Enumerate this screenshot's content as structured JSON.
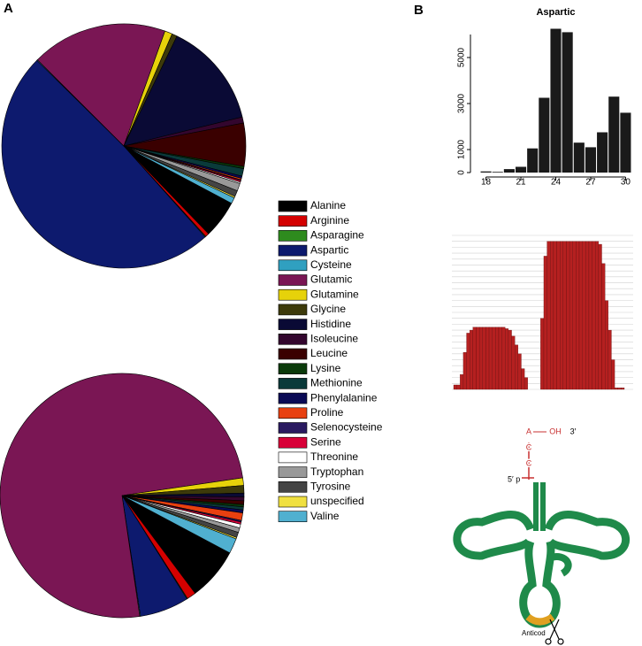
{
  "panels": [
    "A",
    "B"
  ],
  "chart_data": [
    {
      "type": "pie",
      "categories": [
        "Alanine",
        "Arginine",
        "Asparagine",
        "Aspartic",
        "Cysteine",
        "Glutamic",
        "Glutamine",
        "Glycine",
        "Histidine",
        "Isoleucine",
        "Leucine",
        "Lysine",
        "Methionine",
        "Phenylalanine",
        "Proline",
        "Selenocysteine",
        "Serine",
        "Threonine",
        "Tryptophan",
        "Tyrosine",
        "unspecified",
        "Valine"
      ],
      "colors": [
        "#000000",
        "#d40000",
        "#2e8b1e",
        "#0d1a6e",
        "#30a0c0",
        "#7a1654",
        "#e6d20a",
        "#3d3a0a",
        "#0a0a35",
        "#33062e",
        "#3a0000",
        "#0a3a0a",
        "#0a3a3a",
        "#0a0a55",
        "#e84010",
        "#2a1a60",
        "#d80038",
        "#ffffff",
        "#999999",
        "#444444",
        "#f0e040",
        "#50b0d0"
      ],
      "values": [
        5,
        0.5,
        0.1,
        49,
        0.1,
        18,
        1,
        0.7,
        14,
        0.8,
        5.7,
        0.3,
        1,
        0.3,
        0.2,
        0.1,
        0.2,
        0.2,
        1,
        0.8,
        0.2,
        0.8
      ]
    },
    {
      "type": "pie",
      "values": [
        7,
        1.2,
        0.1,
        6.5,
        0.1,
        75,
        1,
        1,
        0.5,
        0.5,
        0.5,
        0.3,
        0.4,
        0.4,
        1,
        0.2,
        0.3,
        0.5,
        0.6,
        0.7,
        0.2,
        2
      ]
    },
    {
      "type": "histogram",
      "title": "Aspartic",
      "color": "#1a1a1a",
      "x": [
        18,
        19,
        20,
        21,
        22,
        23,
        24,
        25,
        26,
        27,
        28,
        29,
        30
      ],
      "values": [
        50,
        30,
        150,
        250,
        1050,
        3250,
        6250,
        6100,
        1300,
        1100,
        1750,
        3300,
        2600
      ],
      "xlim": [
        17.5,
        30.5
      ],
      "xticks": [
        18,
        21,
        24,
        27,
        30
      ],
      "ylim": [
        0,
        6000
      ],
      "yticks": [
        0,
        1000,
        3000,
        5000
      ]
    },
    {
      "type": "coverage",
      "color": "#b52020",
      "grid": true,
      "values": [
        3,
        3,
        10,
        25,
        38,
        40,
        42,
        42,
        42,
        42,
        42,
        42,
        42,
        42,
        42,
        42,
        41,
        40,
        36,
        30,
        24,
        14,
        8,
        0,
        0,
        0,
        0,
        48,
        90,
        100,
        100,
        100,
        100,
        100,
        100,
        100,
        100,
        100,
        100,
        100,
        100,
        100,
        100,
        100,
        100,
        98,
        85,
        60,
        40,
        20,
        1,
        1,
        1
      ],
      "ylim": [
        0,
        104
      ],
      "yticks": [
        0,
        4,
        8,
        12,
        16,
        20,
        24,
        28,
        32,
        36,
        40,
        44,
        48,
        52,
        56,
        60,
        64,
        68,
        72,
        76,
        80,
        84,
        88,
        92,
        96,
        100,
        104
      ]
    }
  ],
  "diagram": {
    "three_end": [
      "A",
      "OH",
      "3′"
    ],
    "cc": [
      "C",
      "C"
    ],
    "five_end": "5′ p",
    "anticodon": "Anticod"
  }
}
